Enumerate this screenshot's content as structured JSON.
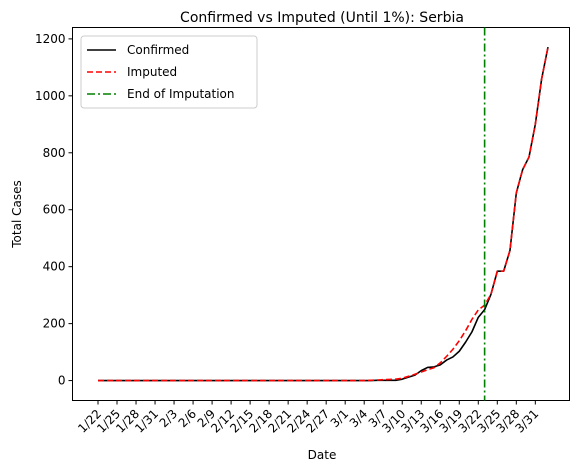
{
  "chart_data": {
    "type": "line",
    "title": "Confirmed vs Imputed (Until 1%): Serbia",
    "xlabel": "Date",
    "ylabel": "Total Cases",
    "x": [
      "1/22",
      "1/23",
      "1/24",
      "1/25",
      "1/26",
      "1/27",
      "1/28",
      "1/29",
      "1/30",
      "1/31",
      "2/1",
      "2/2",
      "2/3",
      "2/4",
      "2/5",
      "2/6",
      "2/7",
      "2/8",
      "2/9",
      "2/10",
      "2/11",
      "2/12",
      "2/13",
      "2/14",
      "2/15",
      "2/16",
      "2/17",
      "2/18",
      "2/19",
      "2/20",
      "2/21",
      "2/22",
      "2/23",
      "2/24",
      "2/25",
      "2/26",
      "2/27",
      "2/28",
      "2/29",
      "3/1",
      "3/2",
      "3/3",
      "3/4",
      "3/5",
      "3/6",
      "3/7",
      "3/8",
      "3/9",
      "3/10",
      "3/11",
      "3/12",
      "3/13",
      "3/14",
      "3/15",
      "3/16",
      "3/17",
      "3/18",
      "3/19",
      "3/20",
      "3/21",
      "3/22",
      "3/23",
      "3/24",
      "3/25",
      "3/26",
      "3/27",
      "3/28",
      "3/29",
      "3/30",
      "3/31",
      "4/1",
      "4/2"
    ],
    "x_tick_labels": [
      "1/22",
      "1/25",
      "1/28",
      "1/31",
      "2/3",
      "2/6",
      "2/9",
      "2/12",
      "2/15",
      "2/18",
      "2/21",
      "2/24",
      "2/27",
      "3/1",
      "3/4",
      "3/7",
      "3/10",
      "3/13",
      "3/16",
      "3/19",
      "3/22",
      "3/25",
      "3/28",
      "3/31"
    ],
    "x_tick_every": 3,
    "y_ticks": [
      0,
      200,
      400,
      600,
      800,
      1000,
      1200
    ],
    "ylim": [
      -70,
      1240
    ],
    "grid": false,
    "legend_position": "top-left",
    "series": [
      {
        "name": "Confirmed",
        "color": "#000000",
        "style": "solid",
        "values": [
          0,
          0,
          0,
          0,
          0,
          0,
          0,
          0,
          0,
          0,
          0,
          0,
          0,
          0,
          0,
          0,
          0,
          0,
          0,
          0,
          0,
          0,
          0,
          0,
          0,
          0,
          0,
          0,
          0,
          0,
          0,
          0,
          0,
          0,
          0,
          0,
          0,
          0,
          0,
          0,
          0,
          0,
          0,
          0,
          1,
          1,
          1,
          1,
          5,
          12,
          19,
          35,
          46,
          48,
          55,
          72,
          83,
          103,
          135,
          171,
          222,
          249,
          303,
          384,
          384,
          457,
          659,
          741,
          785,
          900,
          1060,
          1171
        ]
      },
      {
        "name": "Imputed",
        "color": "#ff0000",
        "style": "dashed",
        "values": [
          0,
          0,
          0,
          0,
          0,
          0,
          0,
          0,
          0,
          0,
          0,
          0,
          0,
          0,
          0,
          0,
          0,
          0,
          0,
          0,
          0,
          0,
          0,
          0,
          0,
          0,
          0,
          0,
          0,
          0,
          0,
          0,
          0,
          0,
          0,
          0,
          0,
          0,
          0,
          0,
          0,
          0,
          0,
          1,
          2,
          3,
          4,
          5,
          8,
          15,
          22,
          30,
          38,
          45,
          62,
          85,
          110,
          140,
          175,
          215,
          248,
          265,
          303,
          384,
          384,
          457,
          659,
          741,
          785,
          900,
          1060,
          1171
        ]
      }
    ],
    "vlines": [
      {
        "name": "End of Imputation",
        "x": "3/23",
        "color": "#008000",
        "style": "dashdot"
      }
    ]
  }
}
